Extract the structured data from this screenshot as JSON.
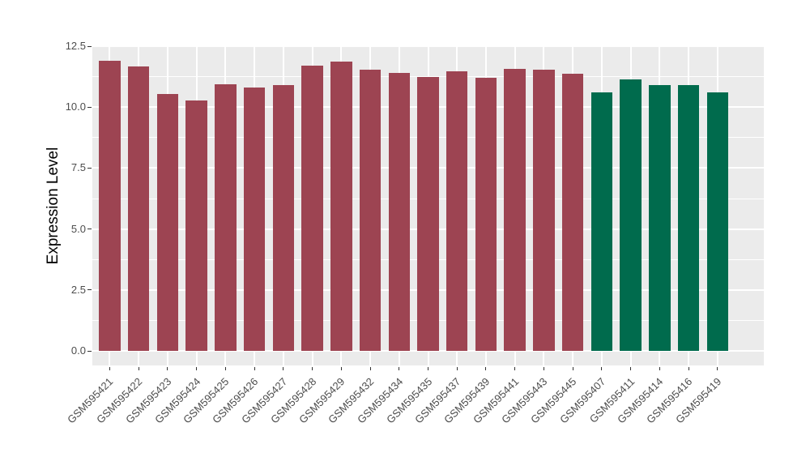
{
  "chart_data": {
    "type": "bar",
    "title": "",
    "xlabel": "",
    "ylabel": "Expression Level",
    "ylim": [
      0,
      12.5
    ],
    "yticks": [
      0.0,
      2.5,
      5.0,
      7.5,
      10.0,
      12.5
    ],
    "yticks_minor": [
      1.25,
      3.75,
      6.25,
      8.75,
      11.25
    ],
    "grid": "on",
    "legend_position": "none",
    "panel_background": "#EBEBEB",
    "grid_color": "#FFFFFF",
    "axis_text_color": "#4D4D4D",
    "categories": [
      "GSM595421",
      "GSM595422",
      "GSM595423",
      "GSM595424",
      "GSM595425",
      "GSM595426",
      "GSM595427",
      "GSM595428",
      "GSM595429",
      "GSM595432",
      "GSM595434",
      "GSM595435",
      "GSM595437",
      "GSM595439",
      "GSM595441",
      "GSM595443",
      "GSM595445",
      "GSM595407",
      "GSM595411",
      "GSM595414",
      "GSM595416",
      "GSM595419"
    ],
    "values": [
      11.9,
      11.68,
      10.54,
      10.27,
      10.93,
      10.8,
      10.92,
      11.7,
      11.88,
      11.55,
      11.4,
      11.23,
      11.48,
      11.2,
      11.56,
      11.54,
      11.37,
      10.6,
      11.15,
      10.9,
      10.92,
      10.6
    ],
    "groups": [
      "red",
      "red",
      "red",
      "red",
      "red",
      "red",
      "red",
      "red",
      "red",
      "red",
      "red",
      "red",
      "red",
      "red",
      "red",
      "red",
      "red",
      "green",
      "green",
      "green",
      "green",
      "green"
    ],
    "group_colors": {
      "red": "#9D4452",
      "green": "#006B4D"
    }
  }
}
